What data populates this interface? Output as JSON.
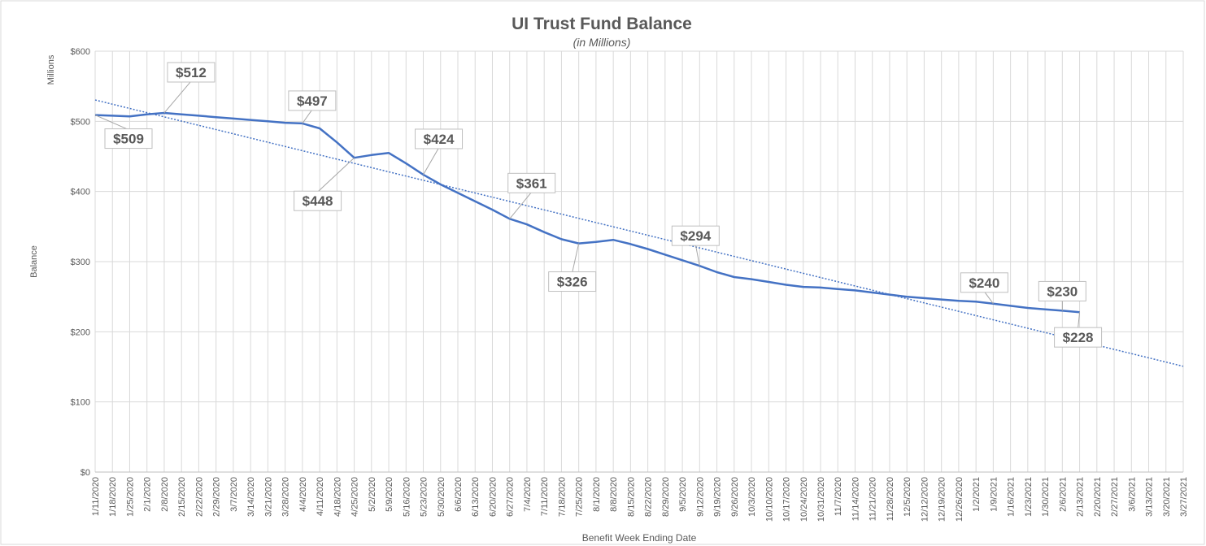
{
  "chart_data": {
    "type": "line",
    "title": "UI Trust Fund Balance",
    "subtitle": "(in Millions)",
    "unit_label": "Millions",
    "y_label": "Balance",
    "x_label": "Benefit Week Ending Date",
    "categories": [
      "1/11/2020",
      "1/18/2020",
      "1/25/2020",
      "2/1/2020",
      "2/8/2020",
      "2/15/2020",
      "2/22/2020",
      "2/29/2020",
      "3/7/2020",
      "3/14/2020",
      "3/21/2020",
      "3/28/2020",
      "4/4/2020",
      "4/11/2020",
      "4/18/2020",
      "4/25/2020",
      "5/2/2020",
      "5/9/2020",
      "5/16/2020",
      "5/23/2020",
      "5/30/2020",
      "6/6/2020",
      "6/13/2020",
      "6/20/2020",
      "6/27/2020",
      "7/4/2020",
      "7/11/2020",
      "7/18/2020",
      "7/25/2020",
      "8/1/2020",
      "8/8/2020",
      "8/15/2020",
      "8/22/2020",
      "8/29/2020",
      "9/5/2020",
      "9/12/2020",
      "9/19/2020",
      "9/26/2020",
      "10/3/2020",
      "10/10/2020",
      "10/17/2020",
      "10/24/2020",
      "10/31/2020",
      "11/7/2020",
      "11/14/2020",
      "11/21/2020",
      "11/28/2020",
      "12/5/2020",
      "12/12/2020",
      "12/19/2020",
      "12/26/2020",
      "1/2/2021",
      "1/9/2021",
      "1/16/2021",
      "1/23/2021",
      "1/30/2021",
      "2/6/2021",
      "2/13/2021",
      "2/20/2021",
      "2/27/2021",
      "3/6/2021",
      "3/13/2021",
      "3/20/2021",
      "3/27/2021"
    ],
    "values": [
      509,
      508,
      507,
      510,
      512,
      510,
      508,
      506,
      504,
      502,
      500,
      498,
      497,
      490,
      470,
      448,
      452,
      455,
      440,
      424,
      410,
      398,
      386,
      374,
      361,
      353,
      342,
      332,
      326,
      328,
      331,
      325,
      318,
      310,
      302,
      294,
      285,
      278,
      275,
      271,
      267,
      264,
      263,
      261,
      259,
      256,
      253,
      250,
      248,
      246,
      244,
      243,
      240,
      237,
      234,
      232,
      230,
      228,
      null,
      null,
      null,
      null,
      null,
      null
    ],
    "value_labels": [
      "$509",
      null,
      null,
      null,
      "$512",
      null,
      null,
      null,
      null,
      null,
      null,
      null,
      "$497",
      null,
      null,
      "$448",
      null,
      null,
      null,
      "$424",
      null,
      null,
      null,
      null,
      "$361",
      null,
      null,
      null,
      "$326",
      null,
      null,
      null,
      null,
      null,
      null,
      "$294",
      null,
      null,
      null,
      null,
      null,
      null,
      null,
      null,
      null,
      null,
      null,
      null,
      null,
      null,
      null,
      null,
      "$240",
      null,
      null,
      null,
      "$230",
      "$228",
      null,
      null,
      null,
      null,
      null,
      null
    ],
    "color": "#4472c4",
    "trendline": "linear",
    "grid": true,
    "ylim": [
      0,
      600
    ],
    "yticks": [
      {
        "value": 0,
        "label": "$0"
      },
      {
        "value": 100,
        "label": "$100"
      },
      {
        "value": 200,
        "label": "$200"
      },
      {
        "value": 300,
        "label": "$300"
      },
      {
        "value": 400,
        "label": "$400"
      },
      {
        "value": 500,
        "label": "$500"
      },
      {
        "value": 600,
        "label": "$600"
      }
    ]
  }
}
